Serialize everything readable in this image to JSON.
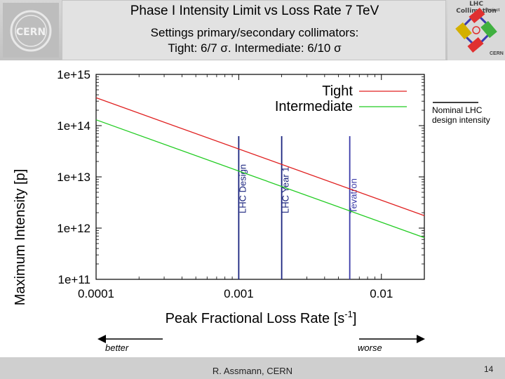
{
  "header": {
    "title": "Phase I Intensity Limit vs Loss Rate 7 TeV",
    "subtitle_1": "Settings primary/secondary collimators:",
    "subtitle_2": "Tight: 6/7 σ. Intermediate: 6/10 σ",
    "cern_logo_text": "CERN",
    "lhc_logo_title": "LHC Collimation",
    "lhc_logo_sub": "Project",
    "lhc_logo_cern": "CERN"
  },
  "annotations": {
    "nominal": "Nominal LHC design intensity",
    "better": "better",
    "worse": "worse"
  },
  "footer": {
    "author": "R. Assmann, CERN",
    "page": "14"
  },
  "colors": {
    "tight": "#e02020",
    "intermediate": "#22cc22",
    "marker": "#1a237e",
    "tevatron": "#3a3aa8"
  },
  "chart_data": {
    "type": "line",
    "xlabel": "Peak Fractional Loss Rate [s-1]",
    "ylabel": "Maximum Intensity [p]",
    "x_scale": "log",
    "y_scale": "log",
    "xlim": [
      0.0001,
      0.02
    ],
    "ylim": [
      100000000000.0,
      1000000000000000.0
    ],
    "x_ticks": [
      "0.0001",
      "0.001",
      "0.01"
    ],
    "y_ticks": [
      "1e+11",
      "1e+12",
      "1e+13",
      "1e+14",
      "1e+15"
    ],
    "legend_position": "top-right",
    "series": [
      {
        "name": "Tight",
        "color_key": "tight",
        "x": [
          0.0001,
          0.02
        ],
        "y": [
          350000000000000.0,
          1750000000000.0
        ]
      },
      {
        "name": "Intermediate",
        "color_key": "intermediate",
        "x": [
          0.0001,
          0.02
        ],
        "y": [
          130000000000000.0,
          650000000000.0
        ]
      }
    ],
    "markers": [
      {
        "label": "LHC Design",
        "x": 0.001,
        "color_key": "marker"
      },
      {
        "label": "LHC Year 1",
        "x": 0.002,
        "color_key": "marker"
      },
      {
        "label": "Tevatron",
        "x": 0.006,
        "color_key": "tevatron"
      }
    ],
    "reference": {
      "y": 320000000000000.0
    }
  }
}
